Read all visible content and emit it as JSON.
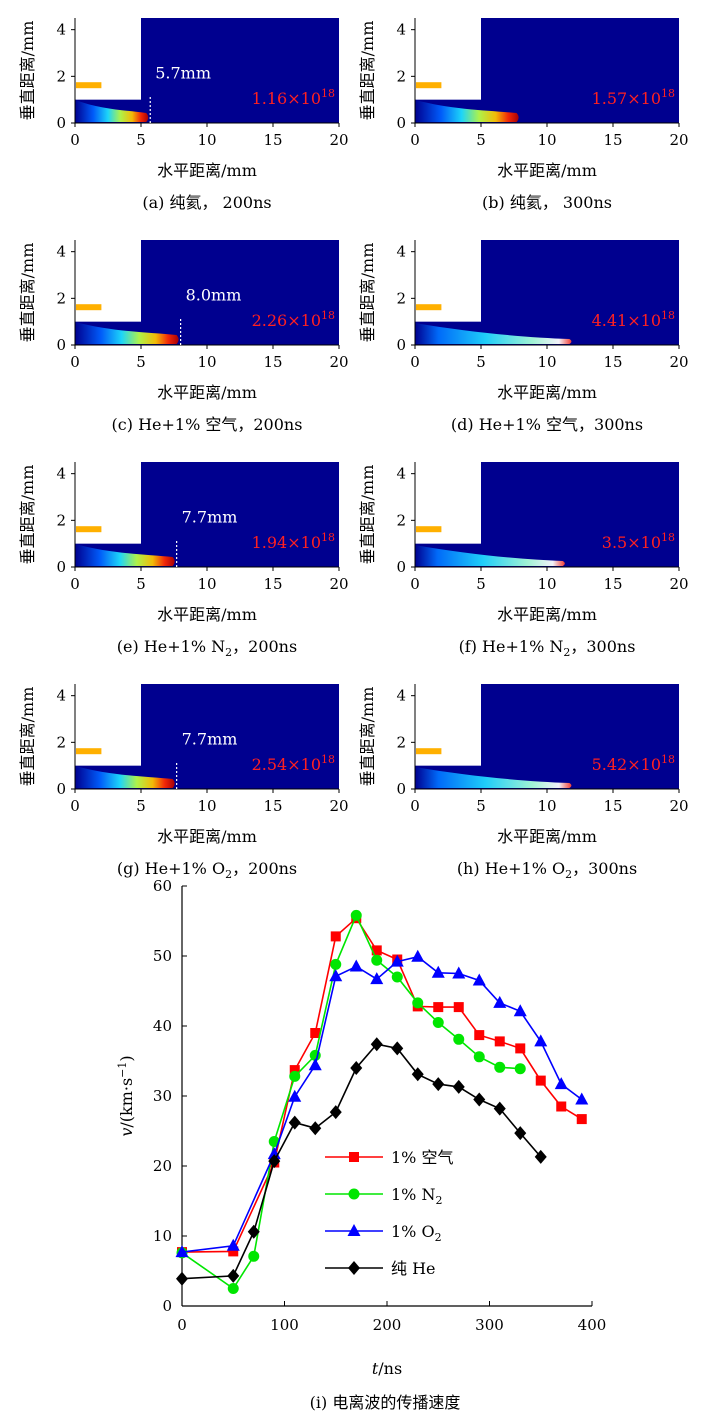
{
  "chart_data": [
    {
      "type": "heatmap",
      "caption": "(a)  纯氦，  200ns",
      "xlabel": "水平距离/mm",
      "ylabel": "垂直距离/mm",
      "xlim": [
        0,
        20
      ],
      "ylim": [
        0,
        4.5
      ],
      "xticks": [
        "0",
        "5",
        "10",
        "15",
        "20"
      ],
      "yticks": [
        "0",
        "2",
        "4"
      ],
      "front_mm": 5.7,
      "distance_label": "5.7mm",
      "max_density_mantissa": "1.16×10",
      "max_density_exponent": "18"
    },
    {
      "type": "heatmap",
      "caption": "(b)  纯氦，  300ns",
      "xlabel": "水平距离/mm",
      "ylabel": "垂直距离/mm",
      "xlim": [
        0,
        20
      ],
      "ylim": [
        0,
        4.5
      ],
      "xticks": [
        "0",
        "5",
        "10",
        "15",
        "20"
      ],
      "yticks": [
        "0",
        "2",
        "4"
      ],
      "front_mm": 8.0,
      "distance_label": "",
      "max_density_mantissa": "1.57×10",
      "max_density_exponent": "18"
    },
    {
      "type": "heatmap",
      "caption": "(c)  He+1% 空气，200ns",
      "xlabel": "水平距离/mm",
      "ylabel": "垂直距离/mm",
      "xlim": [
        0,
        20
      ],
      "ylim": [
        0,
        4.5
      ],
      "xticks": [
        "0",
        "5",
        "10",
        "15",
        "20"
      ],
      "yticks": [
        "0",
        "2",
        "4"
      ],
      "front_mm": 8.0,
      "distance_label": "8.0mm",
      "max_density_mantissa": "2.26×10",
      "max_density_exponent": "18"
    },
    {
      "type": "heatmap",
      "caption": "(d)  He+1% 空气，300ns",
      "xlabel": "水平距离/mm",
      "ylabel": "垂直距离/mm",
      "xlim": [
        0,
        20
      ],
      "ylim": [
        0,
        4.5
      ],
      "xticks": [
        "0",
        "5",
        "10",
        "15",
        "20"
      ],
      "yticks": [
        "0",
        "2",
        "4"
      ],
      "front_mm": 12.0,
      "distance_label": "",
      "max_density_mantissa": "4.41×10",
      "max_density_exponent": "18"
    },
    {
      "type": "heatmap",
      "caption_main": "(e)  He+1% N",
      "caption_sub": "2",
      "caption_tail": "，200ns",
      "xlabel": "水平距离/mm",
      "ylabel": "垂直距离/mm",
      "xlim": [
        0,
        20
      ],
      "ylim": [
        0,
        4.5
      ],
      "xticks": [
        "0",
        "5",
        "10",
        "15",
        "20"
      ],
      "yticks": [
        "0",
        "2",
        "4"
      ],
      "front_mm": 7.7,
      "distance_label": "7.7mm",
      "max_density_mantissa": "1.94×10",
      "max_density_exponent": "18"
    },
    {
      "type": "heatmap",
      "caption_main": "(f)  He+1% N",
      "caption_sub": "2",
      "caption_tail": "，300ns",
      "xlabel": "水平距离/mm",
      "ylabel": "垂直距离/mm",
      "xlim": [
        0,
        20
      ],
      "ylim": [
        0,
        4.5
      ],
      "xticks": [
        "0",
        "5",
        "10",
        "15",
        "20"
      ],
      "yticks": [
        "0",
        "2",
        "4"
      ],
      "front_mm": 11.5,
      "distance_label": "",
      "max_density_mantissa": "3.5×10",
      "max_density_exponent": "18"
    },
    {
      "type": "heatmap",
      "caption_main": "(g)  He+1% O",
      "caption_sub": "2",
      "caption_tail": "，200ns",
      "xlabel": "水平距离/mm",
      "ylabel": "垂直距离/mm",
      "xlim": [
        0,
        20
      ],
      "ylim": [
        0,
        4.5
      ],
      "xticks": [
        "0",
        "5",
        "10",
        "15",
        "20"
      ],
      "yticks": [
        "0",
        "2",
        "4"
      ],
      "front_mm": 7.7,
      "distance_label": "7.7mm",
      "max_density_mantissa": "2.54×10",
      "max_density_exponent": "18"
    },
    {
      "type": "heatmap",
      "caption_main": "(h)  He+1% O",
      "caption_sub": "2",
      "caption_tail": "，300ns",
      "xlabel": "水平距离/mm",
      "ylabel": "垂直距离/mm",
      "xlim": [
        0,
        20
      ],
      "ylim": [
        0,
        4.5
      ],
      "xticks": [
        "0",
        "5",
        "10",
        "15",
        "20"
      ],
      "yticks": [
        "0",
        "2",
        "4"
      ],
      "front_mm": 12.0,
      "distance_label": "",
      "max_density_mantissa": "5.42×10",
      "max_density_exponent": "18"
    },
    {
      "type": "line",
      "caption": "(i)  电离波的传播速度",
      "xlabel_italic": "t",
      "xlabel_rest": "/ns",
      "ylabel_italic": "v",
      "ylabel_rest": "/(km·s",
      "ylabel_sup": "−1",
      "ylabel_close": ")",
      "xlim": [
        0,
        400
      ],
      "ylim": [
        0,
        60
      ],
      "xticks": [
        "0",
        "100",
        "200",
        "300",
        "400"
      ],
      "yticks": [
        "0",
        "10",
        "20",
        "30",
        "40",
        "50",
        "60"
      ],
      "series": [
        {
          "name_main": "1% 空气",
          "name_sub": "",
          "color": "#ff0000",
          "marker": "square",
          "x": [
            0,
            50,
            90,
            110,
            130,
            150,
            170,
            190,
            210,
            230,
            250,
            270,
            290,
            310,
            330,
            350,
            370,
            390
          ],
          "y": [
            7.7,
            7.8,
            20.5,
            33.7,
            39.0,
            52.8,
            55.4,
            50.8,
            49.5,
            42.8,
            42.7,
            42.7,
            38.7,
            37.8,
            36.8,
            32.2,
            28.5,
            26.7
          ]
        },
        {
          "name_main": "1% N",
          "name_sub": "2",
          "color": "#00e600",
          "marker": "circle",
          "x": [
            0,
            50,
            70,
            90,
            110,
            130,
            150,
            170,
            190,
            210,
            230,
            250,
            270,
            290,
            310,
            330
          ],
          "y": [
            7.6,
            2.5,
            7.1,
            23.5,
            32.8,
            35.8,
            48.8,
            55.8,
            49.4,
            47.0,
            43.3,
            40.5,
            38.1,
            35.6,
            34.1,
            33.9
          ]
        },
        {
          "name_main": "1% O",
          "name_sub": "2",
          "color": "#0000ff",
          "marker": "triangle",
          "x": [
            0,
            50,
            90,
            110,
            130,
            150,
            170,
            190,
            210,
            230,
            250,
            270,
            290,
            310,
            330,
            350,
            370,
            390
          ],
          "y": [
            7.7,
            8.6,
            21.7,
            29.9,
            34.4,
            47.1,
            48.5,
            46.7,
            49.2,
            49.9,
            47.6,
            47.5,
            46.5,
            43.3,
            42.1,
            37.8,
            31.7,
            29.5
          ]
        },
        {
          "name_main": "纯 He",
          "name_sub": "",
          "color": "#000000",
          "marker": "diamond",
          "x": [
            0,
            50,
            70,
            90,
            110,
            130,
            150,
            170,
            190,
            210,
            230,
            250,
            270,
            290,
            310,
            330,
            350
          ],
          "y": [
            3.9,
            4.3,
            10.6,
            20.7,
            26.2,
            25.4,
            27.7,
            34.0,
            37.4,
            36.8,
            33.1,
            31.7,
            31.3,
            29.5,
            28.2,
            24.7,
            21.3
          ]
        }
      ]
    }
  ]
}
